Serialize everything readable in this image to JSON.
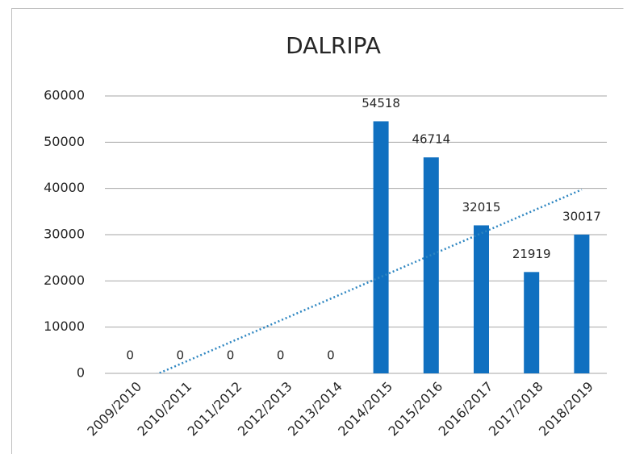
{
  "chart_data": {
    "type": "bar",
    "title": "DALRIPA",
    "categories": [
      "2009/2010",
      "2010/2011",
      "2011/2012",
      "2012/2013",
      "2013/2014",
      "2014/2015",
      "2015/2016",
      "2016/2017",
      "2017/2018",
      "2018/2019"
    ],
    "values": [
      0,
      0,
      0,
      0,
      0,
      54518,
      46714,
      32015,
      21919,
      30017
    ],
    "color": "#1070c0",
    "ylim": [
      0,
      60000
    ],
    "yticks": [
      0,
      10000,
      20000,
      30000,
      40000,
      50000,
      60000
    ],
    "grid": true,
    "trendline": "linear",
    "trendline_color": "#2e86c1"
  }
}
